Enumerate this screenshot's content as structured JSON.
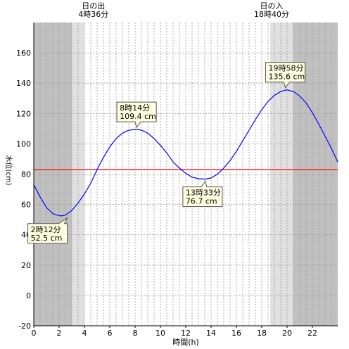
{
  "chart_data": {
    "type": "line",
    "xlabel": "時間(h)",
    "ylabel": "水位(cm)",
    "xlim": [
      0,
      24
    ],
    "ylim": [
      -20,
      180
    ],
    "xticks": [
      0,
      2,
      4,
      6,
      8,
      10,
      12,
      14,
      16,
      18,
      20,
      22
    ],
    "yticks": [
      -20,
      0,
      20,
      40,
      60,
      80,
      100,
      120,
      140,
      160
    ],
    "minor_grid_step_hours": 0.5,
    "reference_line": {
      "y": 83,
      "color": "#ff0000"
    },
    "sunrise": {
      "label": "日の出",
      "time": "4時36分",
      "hour": 4.6
    },
    "sunset": {
      "label": "日の入",
      "time": "18時40分",
      "hour": 18.67
    },
    "series": [
      {
        "color": "#0000ff",
        "x": [
          0,
          0.5,
          1,
          1.5,
          2,
          2.2,
          2.5,
          3,
          3.5,
          4,
          4.5,
          5,
          5.5,
          6,
          6.5,
          7,
          7.5,
          8,
          8.23,
          8.5,
          9,
          9.5,
          10,
          10.5,
          11,
          11.5,
          12,
          12.5,
          13,
          13.55,
          14,
          14.5,
          15,
          15.5,
          16,
          16.5,
          17,
          17.5,
          18,
          18.5,
          19,
          19.5,
          19.97,
          20.5,
          21,
          21.5,
          22,
          22.5,
          23,
          23.5,
          24
        ],
        "y": [
          73,
          65,
          58,
          54,
          52.6,
          52.5,
          53,
          56,
          61,
          67,
          74,
          83,
          91,
          98,
          103.5,
          107,
          109,
          109.4,
          109.4,
          109,
          107,
          103.5,
          99,
          94,
          88,
          84,
          80.5,
          78,
          77,
          76.7,
          77.5,
          80,
          84,
          89,
          95,
          102,
          109,
          116,
          122.5,
          128,
          132,
          134.5,
          135.6,
          134.5,
          131.5,
          127,
          120.5,
          113,
          105,
          97,
          88
        ]
      }
    ],
    "annotations": [
      {
        "kind": "low",
        "hour": 2.2,
        "value": 52.5,
        "time": "2時12分",
        "level": "52.5 cm"
      },
      {
        "kind": "high",
        "hour": 8.23,
        "value": 109.4,
        "time": "8時14分",
        "level": "109.4 cm"
      },
      {
        "kind": "low",
        "hour": 13.55,
        "value": 76.7,
        "time": "13時33分",
        "level": "76.7 cm"
      },
      {
        "kind": "high",
        "hour": 19.97,
        "value": 135.6,
        "time": "19時58分",
        "level": "135.6 cm"
      }
    ],
    "colors": {
      "night": "#c0c0c0",
      "twilight": "#e0e0e0",
      "day": "#ffffff",
      "grid": "#999999",
      "callout_fill": "#ffffe0"
    }
  }
}
